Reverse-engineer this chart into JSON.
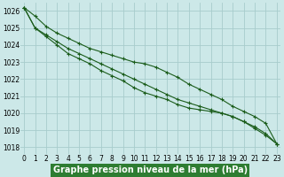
{
  "title": "Graphe pression niveau de la mer (hPa)",
  "x": [
    0,
    1,
    2,
    3,
    4,
    5,
    6,
    7,
    8,
    9,
    10,
    11,
    12,
    13,
    14,
    15,
    16,
    17,
    18,
    19,
    20,
    21,
    22,
    23
  ],
  "line1": [
    1026.2,
    1025.7,
    1025.1,
    1024.7,
    1024.4,
    1024.1,
    1023.8,
    1023.6,
    1023.4,
    1023.2,
    1023.0,
    1022.9,
    1022.7,
    1022.4,
    1022.1,
    1021.7,
    1021.4,
    1021.1,
    1020.8,
    1020.4,
    1020.1,
    1019.8,
    1019.4,
    1018.2
  ],
  "line2": [
    1026.2,
    1025.0,
    1024.6,
    1024.2,
    1023.8,
    1023.5,
    1023.2,
    1022.9,
    1022.6,
    1022.3,
    1022.0,
    1021.7,
    1021.4,
    1021.1,
    1020.8,
    1020.6,
    1020.4,
    1020.2,
    1020.0,
    1019.8,
    1019.5,
    1019.2,
    1018.8,
    1018.2
  ],
  "line3": [
    1026.2,
    1025.0,
    1024.5,
    1024.0,
    1023.5,
    1023.2,
    1022.9,
    1022.5,
    1022.2,
    1021.9,
    1021.5,
    1021.2,
    1021.0,
    1020.8,
    1020.5,
    1020.3,
    1020.2,
    1020.1,
    1020.0,
    1019.8,
    1019.5,
    1019.1,
    1018.7,
    1018.2
  ],
  "line_color": "#1a5c1a",
  "marker_color": "#1a5c1a",
  "bg_color": "#cce8e8",
  "grid_color": "#a8cccc",
  "ylim": [
    1017.6,
    1026.5
  ],
  "xlim": [
    -0.3,
    23.3
  ],
  "yticks": [
    1018,
    1019,
    1020,
    1021,
    1022,
    1023,
    1024,
    1025,
    1026
  ],
  "xticks": [
    0,
    1,
    2,
    3,
    4,
    5,
    6,
    7,
    8,
    9,
    10,
    11,
    12,
    13,
    14,
    15,
    16,
    17,
    18,
    19,
    20,
    21,
    22,
    23
  ],
  "title_fontsize": 7.0,
  "tick_fontsize": 5.5,
  "title_bg": "#2e7d32",
  "title_fg": "#ffffff"
}
